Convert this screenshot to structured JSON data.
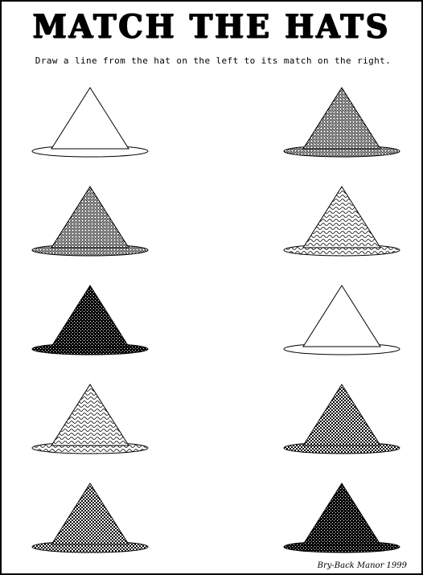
{
  "title": "MATCH THE HATS",
  "instructions": "Draw a line from the hat on the left to its match on the right.",
  "credit": "Bry-Back Manor 1999",
  "left_hats": [
    {
      "pattern": "white"
    },
    {
      "pattern": "gray"
    },
    {
      "pattern": "black"
    },
    {
      "pattern": "wavy"
    },
    {
      "pattern": "checker"
    }
  ],
  "right_hats": [
    {
      "pattern": "gray"
    },
    {
      "pattern": "wavy"
    },
    {
      "pattern": "white"
    },
    {
      "pattern": "checker"
    },
    {
      "pattern": "black"
    }
  ]
}
